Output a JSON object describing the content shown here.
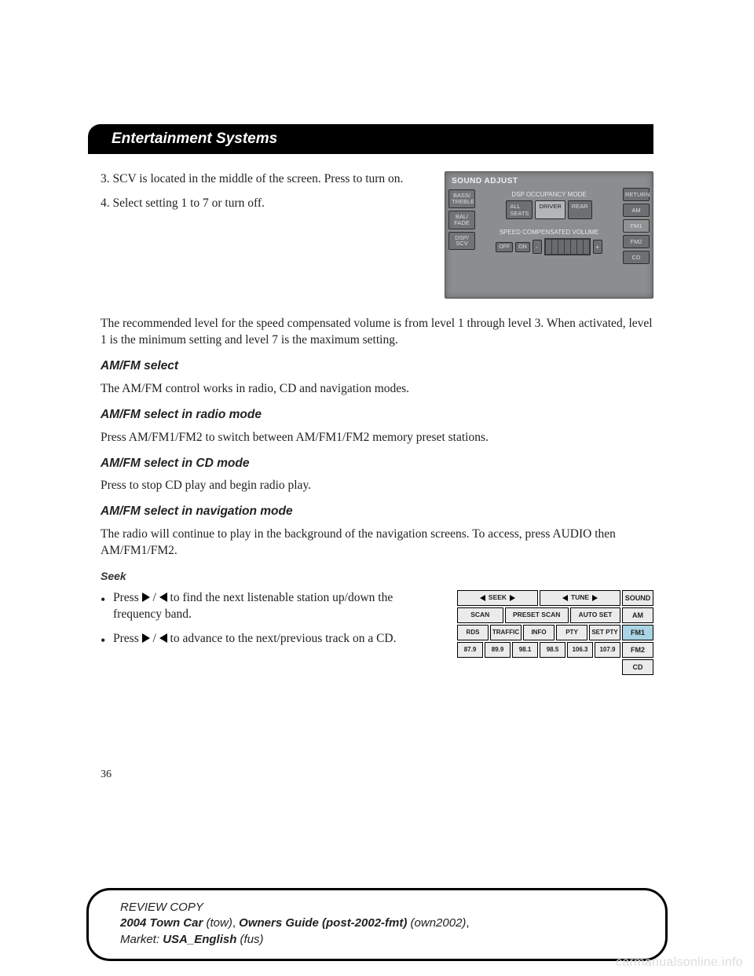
{
  "chapter_title": "Entertainment Systems",
  "step3": "3. SCV is located in the middle of the screen. Press to turn on.",
  "step4": "4. Select setting 1 to 7 or turn off.",
  "sound_adjust": {
    "title": "SOUND ADJUST",
    "left_buttons": [
      "BASS/\nTREBLE",
      "BAL/\nFADE",
      "DSP/\nSCV"
    ],
    "right_buttons": [
      "RETURN",
      "AM",
      "FM1",
      "FM2",
      "CD"
    ],
    "right_active_index": 2,
    "mid_label_1": "DSP OCCUPANCY MODE",
    "mid_seg_1": [
      "ALL\nSEATS",
      "DRIVER",
      "REAR"
    ],
    "mid_seg_1_selected": 1,
    "mid_label_2": "SPEED COMPENSATED VOLUME",
    "scv_off": "OFF",
    "scv_on": "ON",
    "scv_bar_count": 7,
    "background_color": "#8b8d8f",
    "button_bg": "#727376",
    "button_border": "#2d2d2d"
  },
  "para_recommended": "The recommended level for the speed compensated volume is from level 1 through level 3. When activated, level 1 is the minimum setting and level 7 is the maximum setting.",
  "h_amfm": "AM/FM select",
  "para_amfm": "The AM/FM control works in radio, CD and navigation modes.",
  "h_amfm_radio": "AM/FM select in radio mode",
  "para_amfm_radio": "Press AM/FM1/FM2 to switch between AM/FM1/FM2 memory preset stations.",
  "h_amfm_cd": "AM/FM select in CD mode",
  "para_amfm_cd": "Press to stop CD play and begin radio play.",
  "h_amfm_nav": "AM/FM select in navigation mode",
  "para_amfm_nav": "The radio will continue to play in the background of the navigation screens. To access, press AUDIO then AM/FM1/FM2.",
  "h_seek": "Seek",
  "seek_bullets": {
    "b1_pre": "Press ",
    "b1_mid": " / ",
    "b1_post": " to find the next listenable station up/down the frequency band.",
    "b2_pre": "Press ",
    "b2_mid": " / ",
    "b2_post": " to advance to the next/previous track on a CD."
  },
  "radio_panel": {
    "row1": [
      {
        "type": "seektune",
        "label": "SEEK"
      },
      {
        "type": "seektune",
        "label": "TUNE"
      }
    ],
    "row2": [
      "SCAN",
      "PRESET SCAN",
      "AUTO SET"
    ],
    "row2_flex": [
      1,
      1.4,
      1.1
    ],
    "row3": [
      "RDS",
      "TRAFFIC",
      "INFO",
      "PTY",
      "SET PTY"
    ],
    "row4": [
      "87.9",
      "89.9",
      "98.1",
      "98.5",
      "106.3",
      "107.9"
    ],
    "side": [
      "SOUND",
      "AM",
      "FM1",
      "FM2",
      "CD"
    ],
    "side_active_index": 2,
    "btn_bg": "#ebebeb",
    "btn_active_bg": "#a9d4e4"
  },
  "page_number": "36",
  "footer": {
    "review": "REVIEW COPY",
    "model": "2004 Town Car",
    "tow": " (tow)",
    "comma1": ", ",
    "owners": "Owners Guide (post-2002-fmt)",
    "own2002": " (own2002)",
    "comma2": ",",
    "market_label": "Market: ",
    "market_val": "USA_English",
    "fus": " (fus)"
  },
  "watermark": "carmanualsonline.info"
}
